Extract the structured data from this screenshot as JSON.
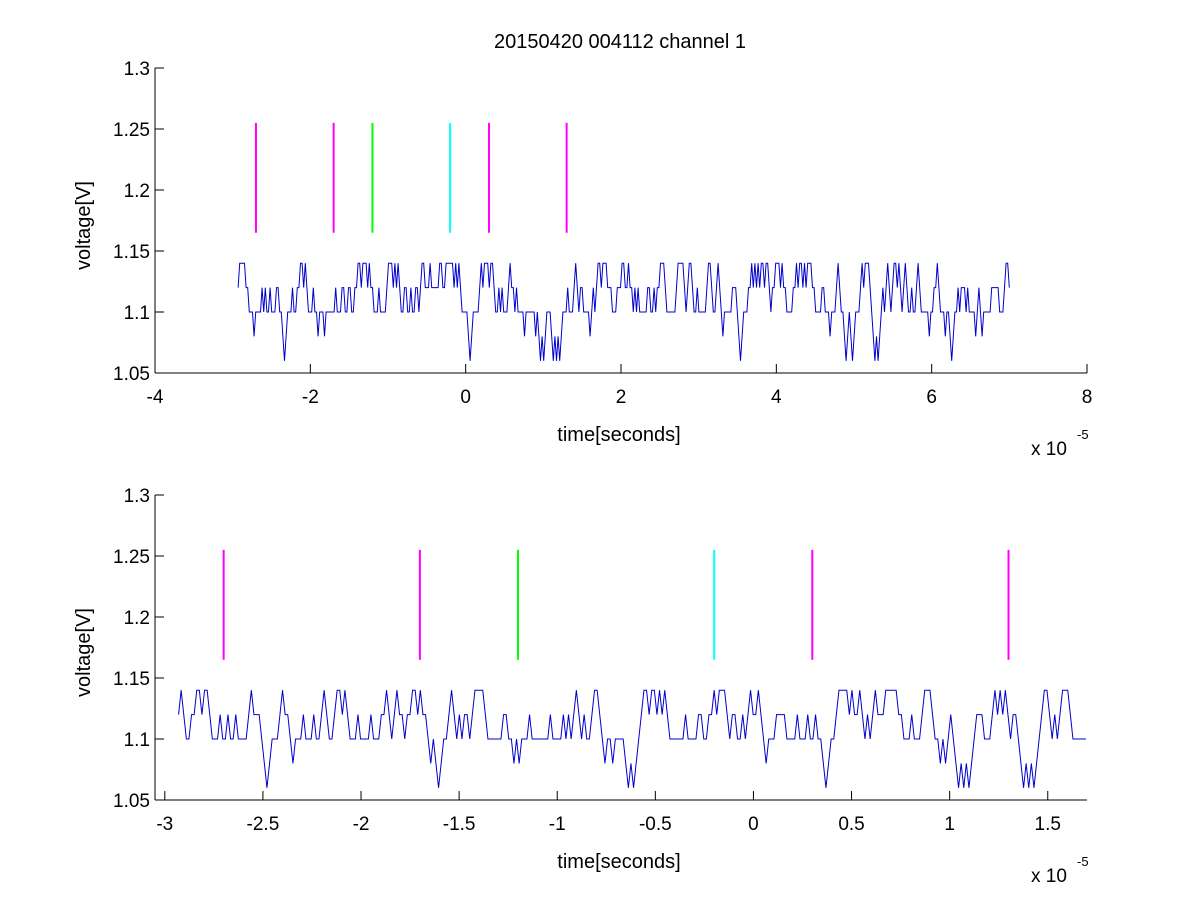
{
  "figure": {
    "title": "20150420 004112 channel 1"
  },
  "colors": {
    "signal": "#0000cc",
    "magenta": "#ff00ff",
    "green": "#00ff00",
    "cyan": "#00ffff",
    "axis": "#000000",
    "background": "#ffffff"
  },
  "chart_data": [
    {
      "type": "line",
      "title": "20150420 004112 channel 1",
      "xlabel": "time[seconds]",
      "ylabel": "voltage[V]",
      "x_exponent_label": "x 10",
      "x_exponent": "-5",
      "xlim": [
        -4e-05,
        8e-05
      ],
      "ylim": [
        1.05,
        1.3
      ],
      "xticks": [
        -4e-05,
        -2e-05,
        0,
        2e-05,
        4e-05,
        6e-05,
        8e-05
      ],
      "xtick_labels": [
        "-4",
        "-2",
        "0",
        "2",
        "4",
        "6",
        "8"
      ],
      "yticks": [
        1.05,
        1.1,
        1.15,
        1.2,
        1.25,
        1.3
      ],
      "ytick_labels": [
        "1.05",
        "1.1",
        "1.15",
        "1.2",
        "1.25",
        "1.3"
      ],
      "grid": false,
      "series": [
        {
          "kind": "staircase-signal",
          "color": "#0000cc",
          "x_start": -2.93e-05,
          "x_end": 7e-05,
          "levels": [
            1.06,
            1.08,
            1.1,
            1.12,
            1.14
          ],
          "seed": 7
        }
      ],
      "markers": [
        {
          "x": -2.7e-05,
          "color": "#ff00ff",
          "y_range": [
            1.165,
            1.255
          ]
        },
        {
          "x": -1.7e-05,
          "color": "#ff00ff",
          "y_range": [
            1.165,
            1.255
          ]
        },
        {
          "x": -1.2e-05,
          "color": "#00ff00",
          "y_range": [
            1.165,
            1.255
          ]
        },
        {
          "x": -2e-06,
          "color": "#00ffff",
          "y_range": [
            1.165,
            1.255
          ]
        },
        {
          "x": 3e-06,
          "color": "#ff00ff",
          "y_range": [
            1.165,
            1.255
          ]
        },
        {
          "x": 1.3e-05,
          "color": "#ff00ff",
          "y_range": [
            1.165,
            1.255
          ]
        }
      ]
    },
    {
      "type": "line",
      "title": "",
      "xlabel": "time[seconds]",
      "ylabel": "voltage[V]",
      "x_exponent_label": "x 10",
      "x_exponent": "-5",
      "xlim": [
        -3.05e-05,
        1.7e-05
      ],
      "ylim": [
        1.05,
        1.3
      ],
      "xticks": [
        -3e-05,
        -2.5e-05,
        -2e-05,
        -1.5e-05,
        -1e-05,
        -5e-06,
        0,
        5e-06,
        1e-05,
        1.5e-05
      ],
      "xtick_labels": [
        "-3",
        "-2.5",
        "-2",
        "-1.5",
        "-1",
        "-0.5",
        "0",
        "0.5",
        "1",
        "1.5"
      ],
      "yticks": [
        1.05,
        1.1,
        1.15,
        1.2,
        1.25,
        1.3
      ],
      "ytick_labels": [
        "1.05",
        "1.1",
        "1.15",
        "1.2",
        "1.25",
        "1.3"
      ],
      "grid": false,
      "series": [
        {
          "kind": "staircase-signal",
          "color": "#0000cc",
          "x_start": -2.93e-05,
          "x_end": 1.7e-05,
          "levels": [
            1.06,
            1.08,
            1.1,
            1.12,
            1.14
          ],
          "seed": 11
        }
      ],
      "markers": [
        {
          "x": -2.7e-05,
          "color": "#ff00ff",
          "y_range": [
            1.165,
            1.255
          ]
        },
        {
          "x": -1.7e-05,
          "color": "#ff00ff",
          "y_range": [
            1.165,
            1.255
          ]
        },
        {
          "x": -1.2e-05,
          "color": "#00ff00",
          "y_range": [
            1.165,
            1.255
          ]
        },
        {
          "x": -2e-06,
          "color": "#00ffff",
          "y_range": [
            1.165,
            1.255
          ]
        },
        {
          "x": 3e-06,
          "color": "#ff00ff",
          "y_range": [
            1.165,
            1.255
          ]
        },
        {
          "x": 1.3e-05,
          "color": "#ff00ff",
          "y_range": [
            1.165,
            1.255
          ]
        }
      ]
    }
  ]
}
